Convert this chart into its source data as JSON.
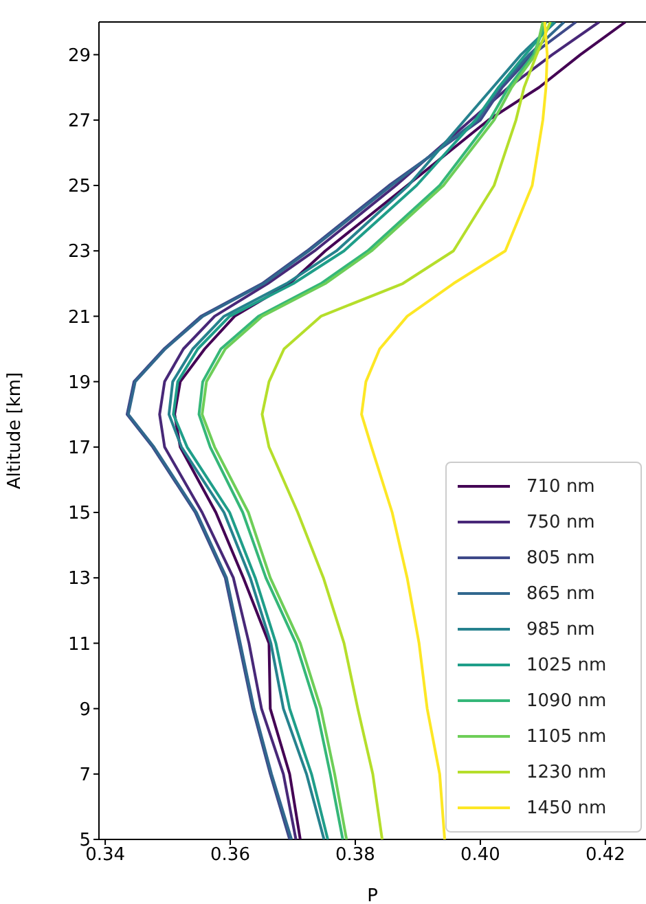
{
  "chart_data": {
    "type": "line",
    "xlabel": "P",
    "ylabel": "Altitude [km]",
    "xlim": [
      0.339,
      0.4265
    ],
    "xticks": [
      0.34,
      0.36,
      0.38,
      {
        "value": 0.4,
        "label": "0.40"
      },
      0.42
    ],
    "ylim": [
      5,
      30
    ],
    "yticks": [
      5,
      7,
      9,
      11,
      13,
      15,
      17,
      19,
      21,
      23,
      25,
      27,
      29
    ],
    "grid": false,
    "legend": "bottom right",
    "marker": "none",
    "line_style": "solid",
    "series": [
      {
        "name": "710 nm",
        "color": "#440154",
        "x": [
          0.3712,
          0.3695,
          0.3664,
          0.3662,
          0.3621,
          0.3577,
          0.352,
          0.3511,
          0.352,
          0.3559,
          0.3607,
          0.3695,
          0.3752,
          0.3883,
          0.4013,
          0.4094,
          0.416,
          0.4232
        ],
        "values": [
          5,
          7,
          9,
          11,
          13,
          15,
          17,
          18,
          19,
          20,
          21,
          22,
          23,
          25,
          27,
          28,
          29,
          30
        ]
      },
      {
        "name": "750 nm",
        "color": "#482878",
        "x": [
          0.3705,
          0.3685,
          0.365,
          0.363,
          0.3605,
          0.3555,
          0.3495,
          0.3487,
          0.3495,
          0.3525,
          0.3575,
          0.366,
          0.3735,
          0.3865,
          0.3985,
          0.4045,
          0.4115,
          0.419
        ],
        "values": [
          5,
          7,
          9,
          11,
          13,
          15,
          17,
          18,
          19,
          20,
          21,
          22,
          23,
          25,
          27,
          28,
          29,
          30
        ]
      },
      {
        "name": "805 nm",
        "color": "#3e4989",
        "x": [
          0.3695,
          0.3664,
          0.3636,
          0.3614,
          0.3592,
          0.3544,
          0.3476,
          0.3435,
          0.3446,
          0.3494,
          0.3553,
          0.3651,
          0.3723,
          0.3854,
          0.4,
          0.4035,
          0.4083,
          0.4153
        ],
        "values": [
          5,
          7,
          9,
          11,
          13,
          15,
          17,
          18,
          19,
          20,
          21,
          22,
          23,
          25,
          27,
          28,
          29,
          30
        ]
      },
      {
        "name": "865 nm",
        "color": "#31688e",
        "x": [
          0.3698,
          0.3666,
          0.3638,
          0.3616,
          0.3594,
          0.3546,
          0.3478,
          0.3437,
          0.3448,
          0.3496,
          0.3556,
          0.3654,
          0.3726,
          0.3858,
          0.3995,
          0.403,
          0.4078,
          0.4134
        ],
        "values": [
          5,
          7,
          9,
          11,
          13,
          15,
          17,
          18,
          19,
          20,
          21,
          22,
          23,
          25,
          27,
          28,
          29,
          30
        ]
      },
      {
        "name": "985 nm",
        "color": "#26828e",
        "x": [
          0.375,
          0.3722,
          0.3685,
          0.3665,
          0.3632,
          0.359,
          0.3522,
          0.3502,
          0.3508,
          0.354,
          0.359,
          0.369,
          0.377,
          0.3885,
          0.3975,
          0.402,
          0.4065,
          0.412
        ],
        "values": [
          5,
          7,
          9,
          11,
          13,
          15,
          17,
          18,
          19,
          20,
          21,
          22,
          23,
          25,
          27,
          28,
          29,
          30
        ]
      },
      {
        "name": "1025 nm",
        "color": "#1f9e89",
        "x": [
          0.3756,
          0.373,
          0.3695,
          0.3673,
          0.364,
          0.3599,
          0.3531,
          0.3509,
          0.3516,
          0.3548,
          0.3599,
          0.3701,
          0.3782,
          0.3898,
          0.3992,
          0.4029,
          0.4072,
          0.4116
        ],
        "values": [
          5,
          7,
          9,
          11,
          13,
          15,
          17,
          18,
          19,
          20,
          21,
          22,
          23,
          25,
          27,
          28,
          29,
          30
        ]
      },
      {
        "name": "1090 nm",
        "color": "#35b779",
        "x": [
          0.378,
          0.376,
          0.3738,
          0.3705,
          0.3657,
          0.362,
          0.3568,
          0.355,
          0.3556,
          0.3585,
          0.3645,
          0.3745,
          0.382,
          0.3935,
          0.4015,
          0.4045,
          0.4085,
          0.4105
        ],
        "values": [
          5,
          7,
          9,
          11,
          13,
          15,
          17,
          18,
          19,
          20,
          21,
          22,
          23,
          25,
          27,
          28,
          29,
          30
        ]
      },
      {
        "name": "1105 nm",
        "color": "#6ece58",
        "x": [
          0.3786,
          0.3767,
          0.3745,
          0.3712,
          0.3664,
          0.3629,
          0.3575,
          0.3555,
          0.3562,
          0.3592,
          0.3651,
          0.3752,
          0.3826,
          0.3941,
          0.4022,
          0.405,
          0.4088,
          0.41
        ],
        "values": [
          5,
          7,
          9,
          11,
          13,
          15,
          17,
          18,
          19,
          20,
          21,
          22,
          23,
          25,
          27,
          28,
          29,
          30
        ]
      },
      {
        "name": "1230 nm",
        "color": "#b5de2b",
        "x": [
          0.3843,
          0.3828,
          0.3804,
          0.3782,
          0.3749,
          0.3708,
          0.3662,
          0.3651,
          0.3662,
          0.3686,
          0.3745,
          0.3876,
          0.3957,
          0.4022,
          0.4057,
          0.407,
          0.409,
          0.4112
        ],
        "values": [
          5,
          7,
          9,
          11,
          13,
          15,
          17,
          18,
          19,
          20,
          21,
          22,
          23,
          25,
          27,
          28,
          29,
          30
        ]
      },
      {
        "name": "1450 nm",
        "color": "#fde725",
        "x": [
          0.3943,
          0.3935,
          0.3915,
          0.3902,
          0.3883,
          0.3859,
          0.3826,
          0.381,
          0.3817,
          0.3839,
          0.3883,
          0.3957,
          0.404,
          0.4083,
          0.41,
          0.4105,
          0.4107,
          0.4103
        ],
        "values": [
          5,
          7,
          9,
          11,
          13,
          15,
          17,
          18,
          19,
          20,
          21,
          22,
          23,
          25,
          27,
          28,
          29,
          30
        ]
      }
    ]
  }
}
